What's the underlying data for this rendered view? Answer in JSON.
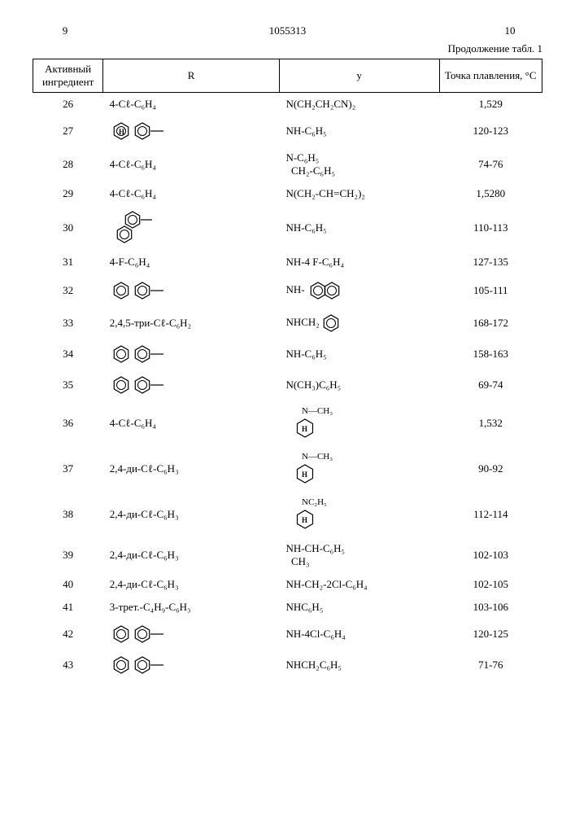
{
  "page": {
    "left_num": "9",
    "center_num": "1055313",
    "right_num": "10",
    "continuation": "Продолжение табл. 1"
  },
  "table": {
    "headers": {
      "col1": "Активный ингредиент",
      "col2": "R",
      "col3": "y",
      "col4": "Точка плавления, °C"
    },
    "rows": [
      {
        "idx": "26",
        "r_text": "4-Cℓ-C₆H₄",
        "r_svg": "",
        "y_text": "N(CH₂CH₂CN)₂",
        "y_svg": "",
        "mp": "1,529"
      },
      {
        "idx": "27",
        "r_text": "",
        "r_svg": "biphenyl-h",
        "y_text": "NH-C₆H₅",
        "y_svg": "",
        "mp": "120-123"
      },
      {
        "idx": "28",
        "r_text": "4-Cℓ-C₆H₄",
        "r_svg": "",
        "y_text": "N-C₆H₅  CH₂-C₆H₅",
        "y_svg": "",
        "mp": "74-76"
      },
      {
        "idx": "29",
        "r_text": "4-Cℓ-C₆H₄",
        "r_svg": "",
        "y_text": "N(CH₂-CH=CH₂)₂",
        "y_svg": "",
        "mp": "1,5280"
      },
      {
        "idx": "30",
        "r_text": "",
        "r_svg": "ortho-biphenyl",
        "y_text": "NH-C₆H₅",
        "y_svg": "",
        "mp": "110-113"
      },
      {
        "idx": "31",
        "r_text": "4-F-C₆H₄",
        "r_svg": "",
        "y_text": "NH-4 F-C₆H₄",
        "y_svg": "",
        "mp": "127-135"
      },
      {
        "idx": "32",
        "r_text": "",
        "r_svg": "biphenyl",
        "y_text": "NH-",
        "y_svg": "naphthyl",
        "mp": "105-111"
      },
      {
        "idx": "33",
        "r_text": "2,4,5-три-Cℓ-C₆H₂",
        "r_svg": "",
        "y_text": "NHCH₂",
        "y_svg": "phenyl",
        "mp": "168-172"
      },
      {
        "idx": "34",
        "r_text": "",
        "r_svg": "biphenyl",
        "y_text": "NH-C₆H₅",
        "y_svg": "",
        "mp": "158-163"
      },
      {
        "idx": "35",
        "r_text": "",
        "r_svg": "biphenyl",
        "y_text": "N(CH₃)C₆H₅",
        "y_svg": "",
        "mp": "69-74"
      },
      {
        "idx": "36",
        "r_text": "4-Cℓ-C₆H₄",
        "r_svg": "",
        "y_text": "",
        "y_svg": "cyclohex-nch3",
        "mp": "1,532"
      },
      {
        "idx": "37",
        "r_text": "2,4-ди-Cℓ-C₆H₃",
        "r_svg": "",
        "y_text": "",
        "y_svg": "cyclohex-nch3",
        "mp": "90-92"
      },
      {
        "idx": "38",
        "r_text": "2,4-ди-Cℓ-C₆H₃",
        "r_svg": "",
        "y_text": "",
        "y_svg": "cyclohex-nc2h5",
        "mp": "112-114"
      },
      {
        "idx": "39",
        "r_text": "2,4-ди-Cℓ-C₆H₃",
        "r_svg": "",
        "y_text": "NH-CH-C₆H₅  CH₃",
        "y_svg": "",
        "mp": "102-103"
      },
      {
        "idx": "40",
        "r_text": "2,4-ди-Cℓ-C₆H₃",
        "r_svg": "",
        "y_text": "NH-CH₂-2Cl-C₆H₄",
        "y_svg": "",
        "mp": "102-105"
      },
      {
        "idx": "41",
        "r_text": "3-трет.-C₄H₉-C₆H₃",
        "r_svg": "",
        "y_text": "NHC₆H₅",
        "y_svg": "",
        "mp": "103-106"
      },
      {
        "idx": "42",
        "r_text": "",
        "r_svg": "biphenyl",
        "y_text": "NH-4Cl-C₆H₄",
        "y_svg": "",
        "mp": "120-125"
      },
      {
        "idx": "43",
        "r_text": "",
        "r_svg": "biphenyl",
        "y_text": "NHCH₂C₆H₅",
        "y_svg": "",
        "mp": "71-76"
      }
    ]
  },
  "svg_tokens": {
    "biphenyl": "biphenyl",
    "biphenyl-h": "biphenyl-h",
    "ortho-biphenyl": "ortho-biphenyl",
    "naphthyl": "naphthyl",
    "phenyl": "phenyl",
    "cyclohex-nch3": "cyclohex-nch3",
    "cyclohex-nc2h5": "cyclohex-nc2h5"
  }
}
